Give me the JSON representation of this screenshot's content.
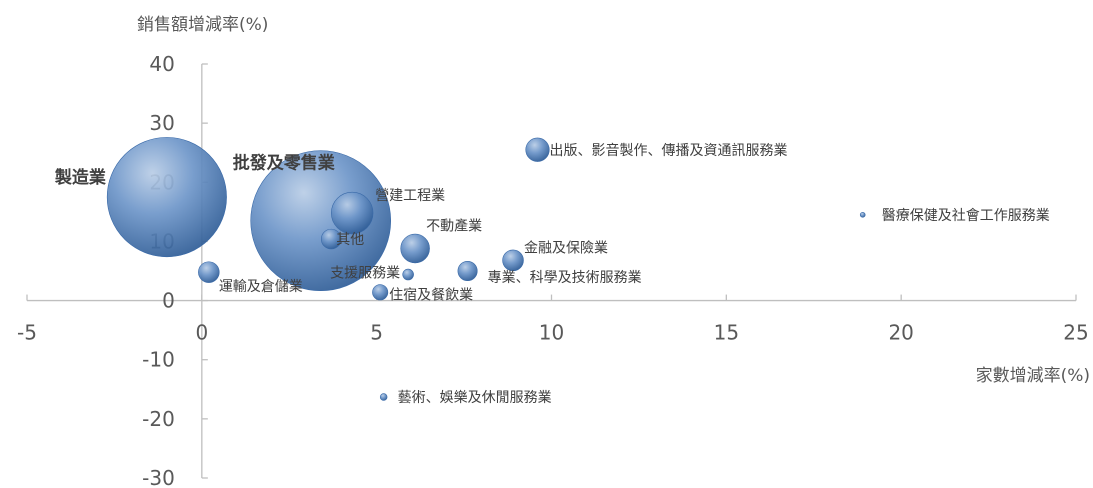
{
  "chart_data": {
    "type": "bubble",
    "xlabel": "家數增減率(%)",
    "ylabel": "銷售額增減率(%)",
    "xlim": [
      -5,
      25
    ],
    "ylim": [
      -30,
      40
    ],
    "x_ticks": [
      "-5",
      "0",
      "5",
      "10",
      "15",
      "20",
      "25"
    ],
    "y_ticks": [
      "40",
      "30",
      "20",
      "10",
      "0",
      "-10",
      "-20",
      "-30"
    ],
    "grid": false,
    "bubble_color": "#4f81bd",
    "points": [
      {
        "label": "製造業",
        "x": -1.0,
        "y": 17.5,
        "size": 3600,
        "bold": true
      },
      {
        "label": "批發及零售業",
        "x": 3.4,
        "y": 13.5,
        "size": 4950,
        "bold": true
      },
      {
        "label": "營建工程業",
        "x": 4.3,
        "y": 14.8,
        "size": 440
      },
      {
        "label": "其他",
        "x": 3.7,
        "y": 10.4,
        "size": 100
      },
      {
        "label": "不動產業",
        "x": 6.1,
        "y": 8.8,
        "size": 210
      },
      {
        "label": "支援服務業",
        "x": 5.9,
        "y": 4.4,
        "size": 30
      },
      {
        "label": "運輸及倉儲業",
        "x": 0.2,
        "y": 4.8,
        "size": 110
      },
      {
        "label": "住宿及餐飲業",
        "x": 5.1,
        "y": 1.4,
        "size": 60
      },
      {
        "label": "專業、科學及技術服務業",
        "x": 7.6,
        "y": 5.0,
        "size": 95
      },
      {
        "label": "金融及保險業",
        "x": 8.9,
        "y": 6.8,
        "size": 110
      },
      {
        "label": "出版、影音製作、傳播及資通訊服務業",
        "x": 9.6,
        "y": 25.5,
        "size": 140
      },
      {
        "label": "醫療保健及社會工作服務業",
        "x": 18.9,
        "y": 14.5,
        "size": 3
      },
      {
        "label": "藝術、娛樂及休閒服務業",
        "x": 5.2,
        "y": -16.3,
        "size": 12
      }
    ]
  }
}
